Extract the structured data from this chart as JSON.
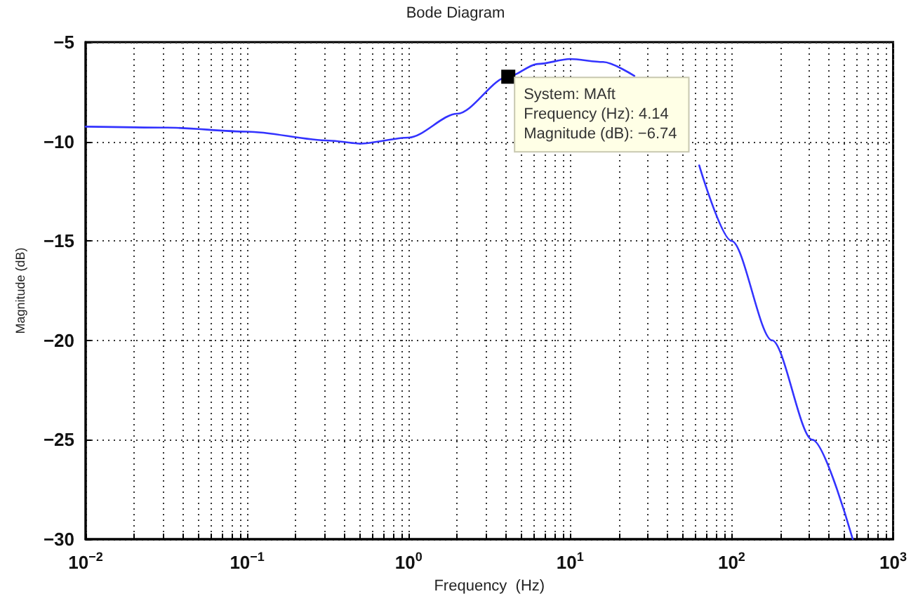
{
  "chart_data": {
    "type": "line",
    "title": "Bode Diagram",
    "xlabel": "Frequency  (Hz)",
    "ylabel": "Magnitude (dB)",
    "log": "x",
    "grid": true,
    "marker": "none",
    "line_style": "solid",
    "xlim": [
      0.01,
      1000
    ],
    "ylim": [
      -30,
      -5
    ],
    "xticks": [
      {
        "value": 0.01,
        "label": "10$^{−2}$"
      },
      {
        "value": 0.02,
        "label": null
      },
      {
        "value": 0.03,
        "label": null
      },
      {
        "value": 0.04,
        "label": null
      },
      {
        "value": 0.05,
        "label": null
      },
      {
        "value": 0.06,
        "label": null
      },
      {
        "value": 0.07,
        "label": null
      },
      {
        "value": 0.08,
        "label": null
      },
      {
        "value": 0.09,
        "label": null
      },
      {
        "value": 0.1,
        "label": "10$^{−1}$"
      },
      {
        "value": 0.2,
        "label": null
      },
      {
        "value": 0.3,
        "label": null
      },
      {
        "value": 0.4,
        "label": null
      },
      {
        "value": 0.5,
        "label": null
      },
      {
        "value": 0.6,
        "label": null
      },
      {
        "value": 0.7,
        "label": null
      },
      {
        "value": 0.8,
        "label": null
      },
      {
        "value": 0.9,
        "label": null
      },
      {
        "value": 1,
        "label": "10$^{0}$"
      },
      {
        "value": 2,
        "label": null
      },
      {
        "value": 3,
        "label": null
      },
      {
        "value": 4,
        "label": null
      },
      {
        "value": 5,
        "label": null
      },
      {
        "value": 6,
        "label": null
      },
      {
        "value": 7,
        "label": null
      },
      {
        "value": 8,
        "label": null
      },
      {
        "value": 9,
        "label": null
      },
      {
        "value": 10,
        "label": "10$^{1}$"
      },
      {
        "value": 20,
        "label": null
      },
      {
        "value": 30,
        "label": null
      },
      {
        "value": 40,
        "label": null
      },
      {
        "value": 50,
        "label": null
      },
      {
        "value": 60,
        "label": null
      },
      {
        "value": 70,
        "label": null
      },
      {
        "value": 80,
        "label": null
      },
      {
        "value": 90,
        "label": null
      },
      {
        "value": 100,
        "label": "10$^{2}$"
      },
      {
        "value": 200,
        "label": null
      },
      {
        "value": 300,
        "label": null
      },
      {
        "value": 400,
        "label": null
      },
      {
        "value": 500,
        "label": null
      },
      {
        "value": 600,
        "label": null
      },
      {
        "value": 700,
        "label": null
      },
      {
        "value": 800,
        "label": null
      },
      {
        "value": 900,
        "label": null
      },
      {
        "value": 1000,
        "label": "10$^{3}$"
      }
    ],
    "yticks": [
      -30,
      -25,
      -20,
      -15,
      -10,
      -5
    ],
    "series": [
      {
        "color": "#3333ff",
        "x": [
          0.01,
          0.032,
          0.1,
          0.32,
          0.5,
          1,
          2,
          4.14,
          6.3,
          10,
          16,
          25,
          32,
          40,
          51,
          63,
          100,
          178,
          316,
          562
        ],
        "values": [
          -9.25,
          -9.3,
          -9.5,
          -9.95,
          -10.1,
          -9.8,
          -8.6,
          -6.74,
          -6.1,
          -5.85,
          -6.0,
          -6.7,
          null,
          null,
          null,
          -11.2,
          -15.0,
          -20,
          -25,
          -30
        ]
      }
    ],
    "annotations": [
      {
        "text": "System: MAft\nFrequency (Hz): 4.14\nMagnitude (dB): −6.74",
        "x": 4.14,
        "y": -6.74
      }
    ]
  }
}
